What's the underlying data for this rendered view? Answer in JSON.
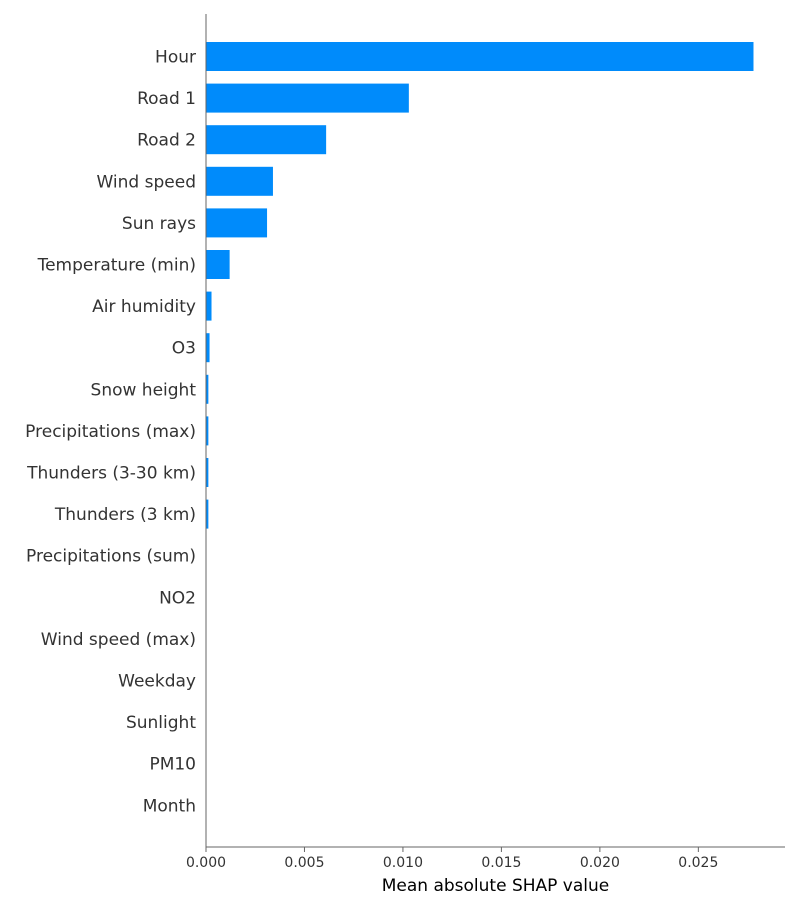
{
  "chart_data": {
    "type": "bar",
    "orientation": "horizontal",
    "categories": [
      "Hour",
      "Road 1",
      "Road 2",
      "Wind speed",
      "Sun rays",
      "Temperature (min)",
      "Air humidity",
      "O3",
      "Snow height",
      "Precipitations (max)",
      "Thunders (3-30 km)",
      "Thunders (3 km)",
      "Precipitations (sum)",
      "NO2",
      "Wind speed (max)",
      "Weekday",
      "Sunlight",
      "PM10",
      "Month"
    ],
    "values": [
      0.0278,
      0.0103,
      0.0061,
      0.0034,
      0.0031,
      0.0012,
      0.00028,
      0.00018,
      0.00012,
      0.00012,
      0.00012,
      0.00012,
      0.0,
      0.0,
      0.0,
      0.0,
      0.0,
      0.0,
      0.0
    ],
    "xlabel": "Mean absolute SHAP value",
    "ylabel": "",
    "title": "",
    "xlim": [
      0.0,
      0.0294
    ],
    "xticks": [
      0.0,
      0.005,
      0.01,
      0.015,
      0.02,
      0.025
    ],
    "xtick_labels": [
      "0.000",
      "0.005",
      "0.010",
      "0.015",
      "0.020",
      "0.025"
    ],
    "grid": false,
    "bar_color": "#008bfb"
  }
}
